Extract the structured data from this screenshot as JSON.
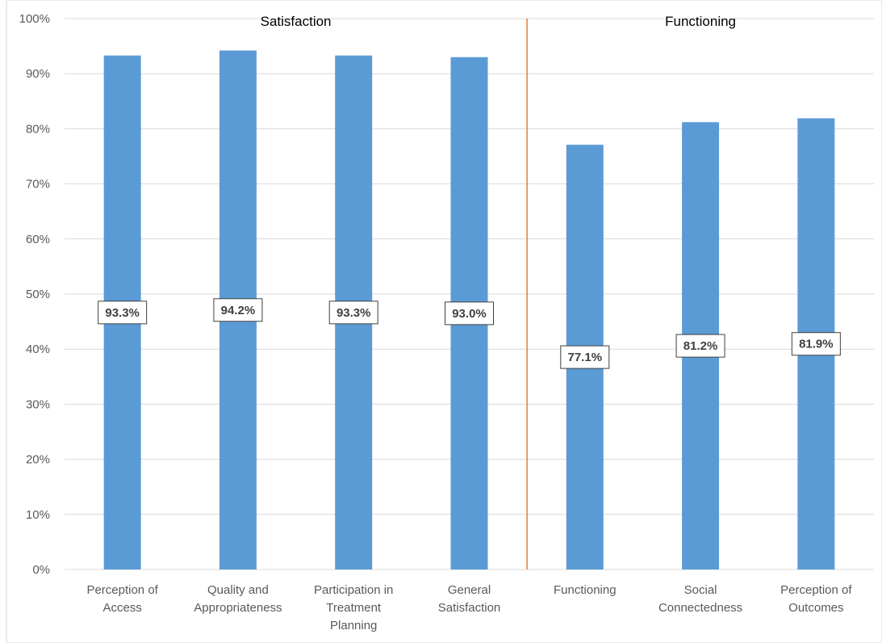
{
  "chart_data": {
    "type": "bar",
    "title": "",
    "xlabel": "",
    "ylabel": "",
    "categories": [
      [
        "Perception of",
        "Access"
      ],
      [
        "Quality and",
        "Appropriateness"
      ],
      [
        "Participation in",
        "Treatment",
        "Planning"
      ],
      [
        "General",
        "Satisfaction"
      ],
      [
        "Functioning"
      ],
      [
        "Social",
        "Connectedness"
      ],
      [
        "Perception of",
        "Outcomes"
      ]
    ],
    "series": [
      {
        "values": [
          93.3,
          94.2,
          93.3,
          93.0,
          77.1,
          81.2,
          81.9
        ]
      }
    ],
    "data_labels": [
      "93.3%",
      "94.2%",
      "93.3%",
      "93.0%",
      "77.1%",
      "81.2%",
      "81.9%"
    ],
    "ylim": [
      0,
      100
    ],
    "yticks": [
      "0%",
      "10%",
      "20%",
      "30%",
      "40%",
      "50%",
      "60%",
      "70%",
      "80%",
      "90%",
      "100%"
    ],
    "grid": true,
    "groups": [
      {
        "label": "Satisfaction",
        "category_count": 4
      },
      {
        "label": "Functioning",
        "category_count": 3
      }
    ],
    "colors": {
      "bar": "#5b9bd5",
      "grid": "#d9d9d9",
      "divider": "#ed7d31",
      "axis_text": "#595959",
      "label_border": "#404040"
    }
  }
}
